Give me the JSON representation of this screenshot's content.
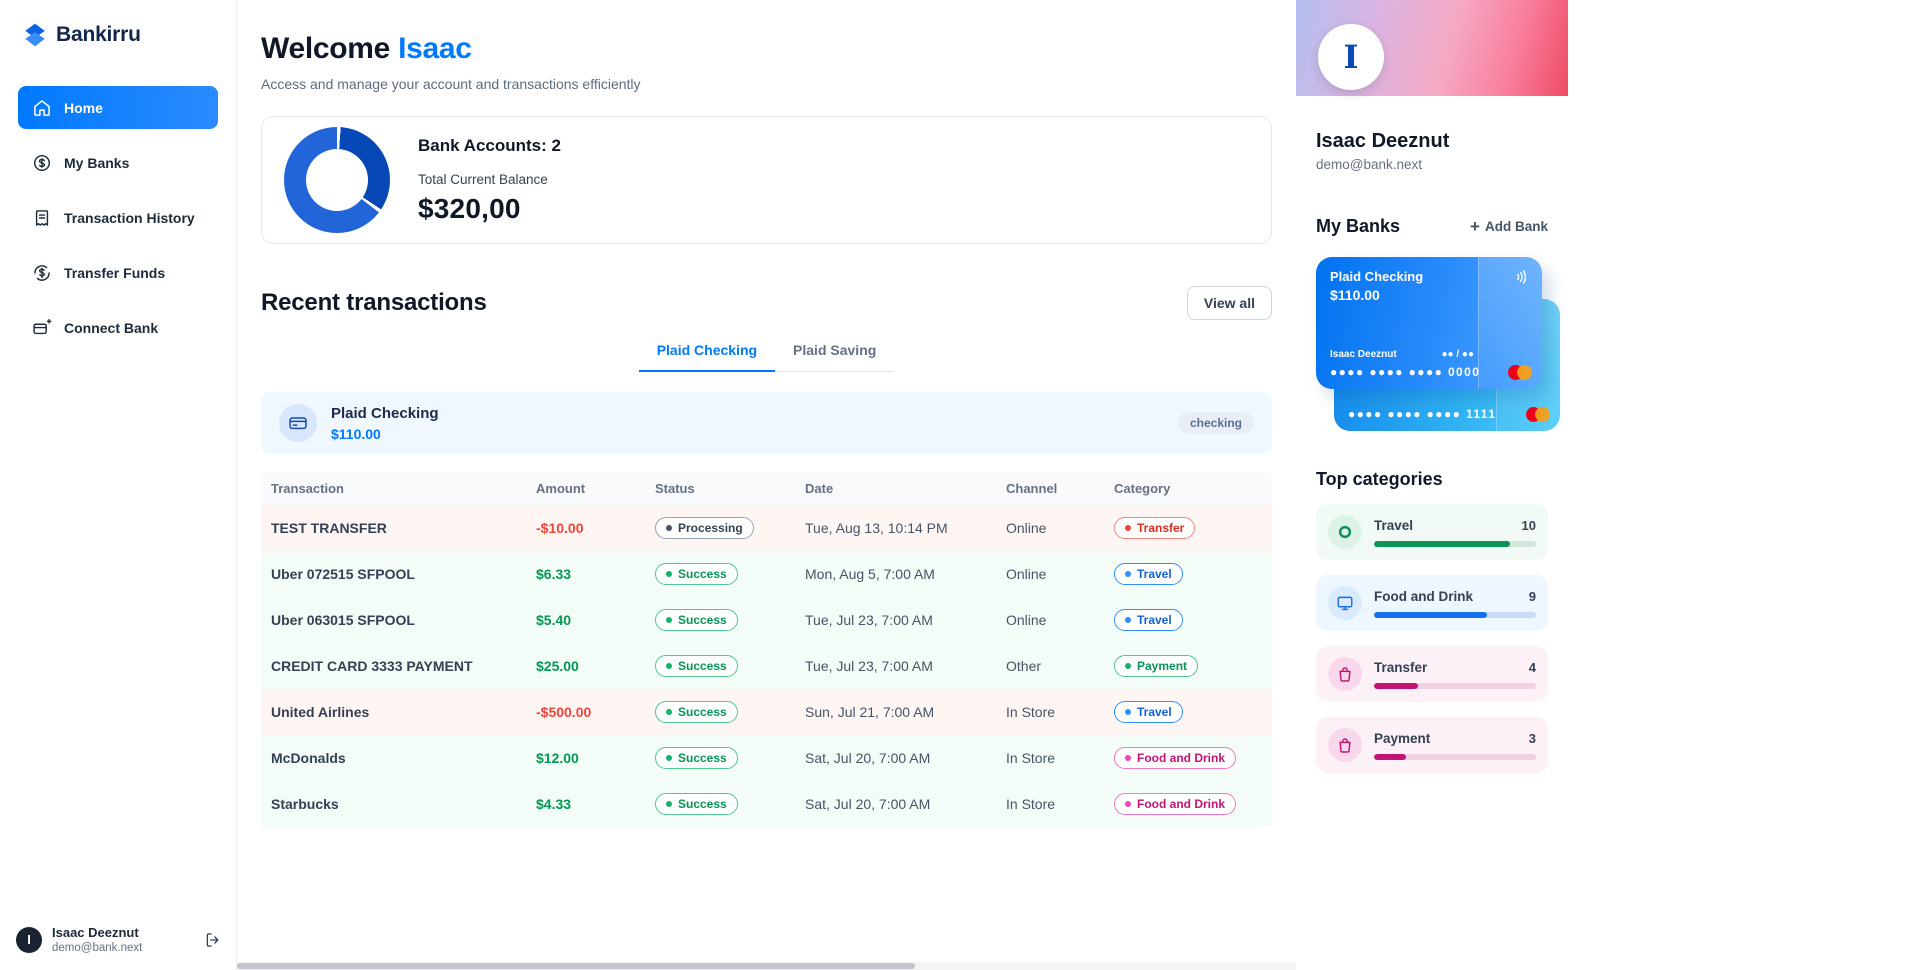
{
  "brand": {
    "name": "Bankirru"
  },
  "sidebar": {
    "items": [
      {
        "label": "Home"
      },
      {
        "label": "My Banks"
      },
      {
        "label": "Transaction History"
      },
      {
        "label": "Transfer Funds"
      },
      {
        "label": "Connect Bank"
      }
    ],
    "user": {
      "initial": "I",
      "name": "Isaac Deeznut",
      "email": "demo@bank.next"
    }
  },
  "header": {
    "greeting": "Welcome",
    "first_name": "Isaac",
    "subtitle": "Access and manage your account and transactions efficiently"
  },
  "balance_card": {
    "accounts_label": "Bank Accounts: 2",
    "balance_label": "Total Current Balance",
    "balance_value": "$320,00",
    "chart_data": {
      "type": "pie",
      "labels": [
        "Plaid Checking",
        "Plaid Saving"
      ],
      "values": [
        110,
        210
      ],
      "colors": [
        "#0747b6",
        "#2265d8"
      ],
      "title": "Total Current Balance"
    }
  },
  "recent": {
    "title": "Recent transactions",
    "view_all_label": "View all",
    "tabs": [
      {
        "label": "Plaid Checking"
      },
      {
        "label": "Plaid Saving"
      }
    ],
    "account": {
      "name": "Plaid Checking",
      "balance": "$110.00",
      "type": "checking"
    },
    "table": {
      "headers": [
        "Transaction",
        "Amount",
        "Status",
        "Date",
        "Channel",
        "Category"
      ],
      "rows": [
        {
          "name": "TEST TRANSFER",
          "amount": "-$10.00",
          "status": "Processing",
          "date": "Tue, Aug 13, 10:14 PM",
          "channel": "Online",
          "category": "Transfer"
        },
        {
          "name": "Uber 072515 SFPOOL",
          "amount": "$6.33",
          "status": "Success",
          "date": "Mon, Aug 5, 7:00 AM",
          "channel": "Online",
          "category": "Travel"
        },
        {
          "name": "Uber 063015 SFPOOL",
          "amount": "$5.40",
          "status": "Success",
          "date": "Tue, Jul 23, 7:00 AM",
          "channel": "Online",
          "category": "Travel"
        },
        {
          "name": "CREDIT CARD 3333 PAYMENT",
          "amount": "$25.00",
          "status": "Success",
          "date": "Tue, Jul 23, 7:00 AM",
          "channel": "Other",
          "category": "Payment"
        },
        {
          "name": "United Airlines",
          "amount": "-$500.00",
          "status": "Success",
          "date": "Sun, Jul 21, 7:00 AM",
          "channel": "In Store",
          "category": "Travel"
        },
        {
          "name": "McDonalds",
          "amount": "$12.00",
          "status": "Success",
          "date": "Sat, Jul 20, 7:00 AM",
          "channel": "In Store",
          "category": "Food and Drink"
        },
        {
          "name": "Starbucks",
          "amount": "$4.33",
          "status": "Success",
          "date": "Sat, Jul 20, 7:00 AM",
          "channel": "In Store",
          "category": "Food and Drink"
        }
      ]
    }
  },
  "profile": {
    "initial": "I",
    "name": "Isaac Deeznut",
    "email": "demo@bank.next"
  },
  "my_banks": {
    "title": "My Banks",
    "add_label": "Add Bank",
    "card": {
      "name": "Plaid Checking",
      "balance": "$110.00",
      "holder": "Isaac Deeznut",
      "expiry": "●● / ●●",
      "number": "●●●● ●●●● ●●●● 0000"
    },
    "card_behind": {
      "number": "●●●● ●●●● ●●●● 1111"
    }
  },
  "top_categories": {
    "title": "Top categories",
    "items": [
      {
        "label": "Travel",
        "count": 10,
        "percent": 84
      },
      {
        "label": "Food and Drink",
        "count": 9,
        "percent": 70
      },
      {
        "label": "Transfer",
        "count": 4,
        "percent": 27
      },
      {
        "label": "Payment",
        "count": 3,
        "percent": 20
      }
    ]
  },
  "colors": {
    "primary_blue": "#0179fe",
    "success_green": "#039855",
    "danger_red": "#f04438",
    "category_pink": "#c11574",
    "banner_gradient": [
      "#b3c0f0",
      "#f5aac4",
      "#ee4b63"
    ]
  }
}
